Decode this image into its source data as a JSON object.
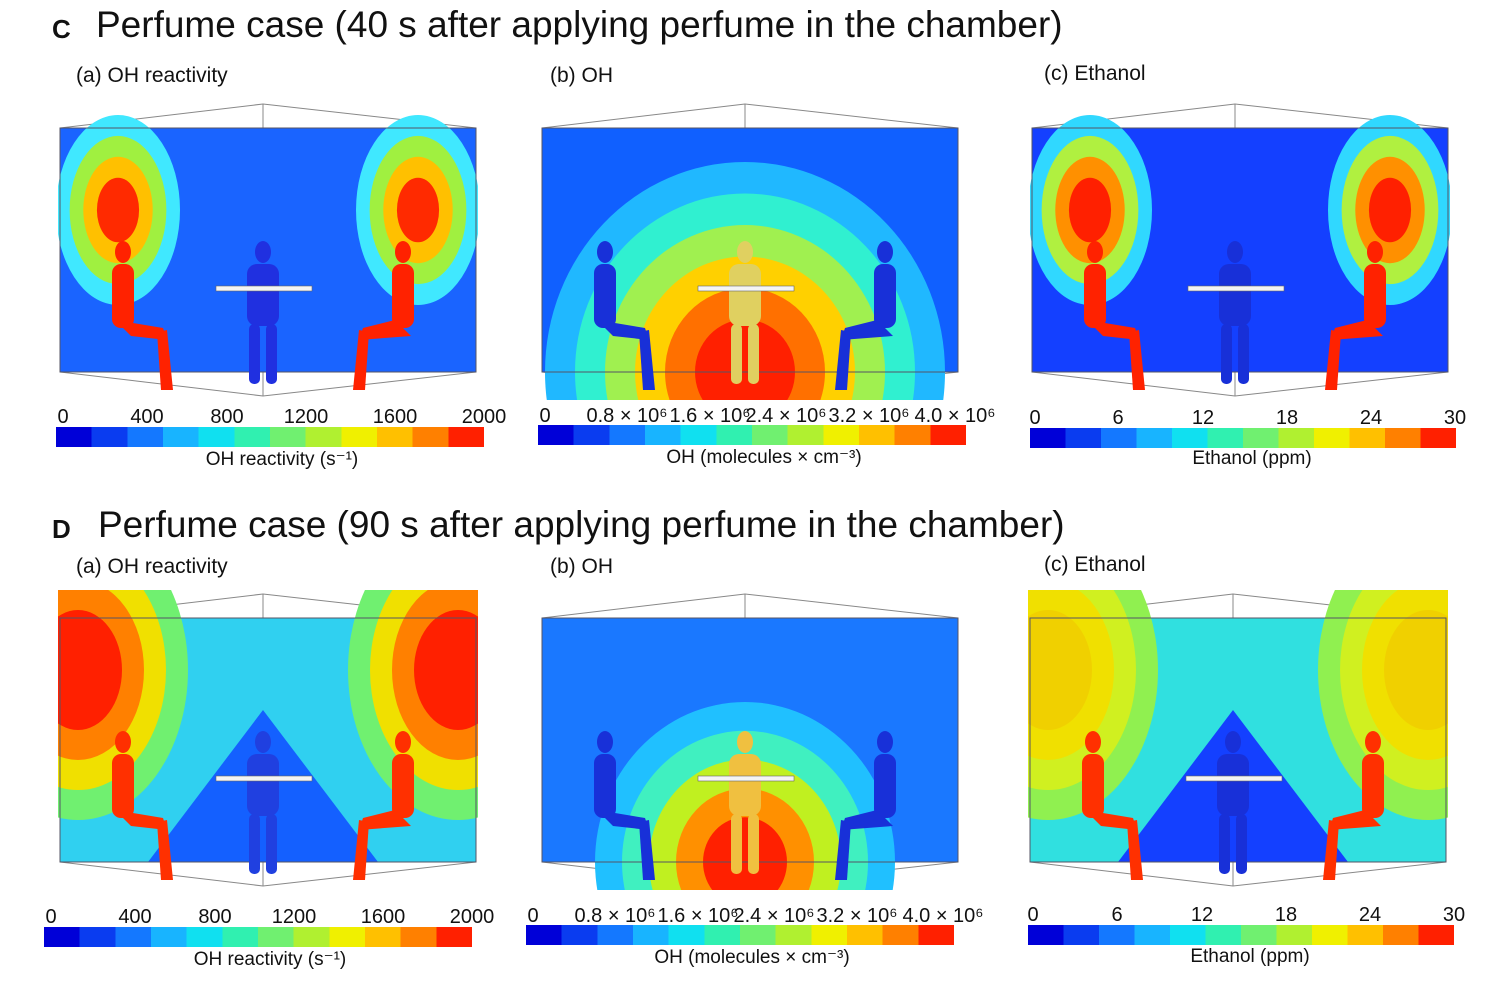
{
  "sections": [
    {
      "letter": "C",
      "title": "Perfume case (40 s after applying perfume in the chamber)",
      "panels": [
        {
          "label": "(a) OH reactivity",
          "ticks": [
            "0",
            "400",
            "800",
            "1200",
            "1600",
            "2000"
          ],
          "caption": "OH reactivity (s⁻¹)"
        },
        {
          "label": "(b) OH",
          "ticks": [
            "0",
            "0.8 × 10⁶",
            "1.6 × 10⁶",
            "2.4 × 10⁶",
            "3.2 × 10⁶",
            "4.0 × 10⁶"
          ],
          "caption": "OH (molecules × cm⁻³)"
        },
        {
          "label": "(c) Ethanol",
          "ticks": [
            "0",
            "6",
            "12",
            "18",
            "24",
            "30"
          ],
          "caption": "Ethanol (ppm)"
        }
      ]
    },
    {
      "letter": "D",
      "title": "Perfume case (90 s after applying perfume in the chamber)",
      "panels": [
        {
          "label": "(a) OH reactivity",
          "ticks": [
            "0",
            "400",
            "800",
            "1200",
            "1600",
            "2000"
          ],
          "caption": "OH reactivity (s⁻¹)"
        },
        {
          "label": "(b) OH",
          "ticks": [
            "0",
            "0.8 × 10⁶",
            "1.6 × 10⁶",
            "2.4 × 10⁶",
            "3.2 × 10⁶",
            "4.0 × 10⁶"
          ],
          "caption": "OH (molecules × cm⁻³)"
        },
        {
          "label": "(c) Ethanol",
          "ticks": [
            "0",
            "6",
            "12",
            "18",
            "24",
            "30"
          ],
          "caption": "Ethanol (ppm)"
        }
      ]
    }
  ],
  "colormap": [
    "#0000d8",
    "#0a3cf0",
    "#1478ff",
    "#18b4ff",
    "#10e0f0",
    "#30f0b0",
    "#70f070",
    "#b0f030",
    "#f0f000",
    "#ffc000",
    "#ff8000",
    "#ff2000"
  ]
}
